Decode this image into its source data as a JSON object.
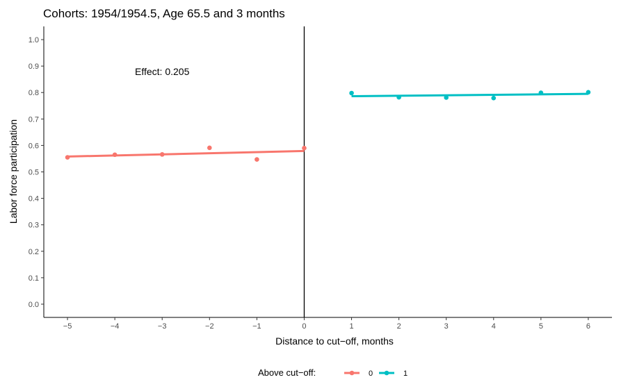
{
  "chart_data": {
    "type": "scatter",
    "title": "Cohorts: 1954/1954.5, Age 65.5 and 3 months",
    "xlabel": "Distance to cut−off, months",
    "ylabel": "Labor force participation",
    "xlim": [
      -5.5,
      6.5
    ],
    "ylim": [
      -0.05,
      1.05
    ],
    "x_ticks": [
      -5,
      -4,
      -3,
      -2,
      -1,
      0,
      1,
      2,
      3,
      4,
      5,
      6
    ],
    "x_tick_labels": [
      "−5",
      "−4",
      "−3",
      "−2",
      "−1",
      "0",
      "1",
      "2",
      "3",
      "4",
      "5",
      "6"
    ],
    "y_ticks": [
      0.0,
      0.1,
      0.2,
      0.3,
      0.4,
      0.5,
      0.6,
      0.7,
      0.8,
      0.9,
      1.0
    ],
    "y_tick_labels": [
      "0.0",
      "0.1",
      "0.2",
      "0.3",
      "0.4",
      "0.5",
      "0.6",
      "0.7",
      "0.8",
      "0.9",
      "1.0"
    ],
    "cutoff_x": 0,
    "grid": false,
    "annotation": {
      "text": "Effect: 0.205",
      "x": -3,
      "y": 0.88
    },
    "legend": {
      "title": "Above cut−off:",
      "position": "bottom"
    },
    "series": [
      {
        "name": "0",
        "color": "#F8766D",
        "points": [
          {
            "x": -5,
            "y": 0.555
          },
          {
            "x": -4,
            "y": 0.565
          },
          {
            "x": -3,
            "y": 0.566
          },
          {
            "x": -2,
            "y": 0.591
          },
          {
            "x": -1,
            "y": 0.547
          },
          {
            "x": 0,
            "y": 0.59
          }
        ],
        "fit": {
          "x": [
            -5,
            0
          ],
          "y": [
            0.558,
            0.579
          ]
        }
      },
      {
        "name": "1",
        "color": "#00BFC4",
        "points": [
          {
            "x": 1,
            "y": 0.798
          },
          {
            "x": 2,
            "y": 0.782
          },
          {
            "x": 3,
            "y": 0.781
          },
          {
            "x": 4,
            "y": 0.779
          },
          {
            "x": 5,
            "y": 0.799
          },
          {
            "x": 6,
            "y": 0.801
          }
        ],
        "fit": {
          "x": [
            1,
            6
          ],
          "y": [
            0.786,
            0.795
          ]
        }
      }
    ]
  }
}
